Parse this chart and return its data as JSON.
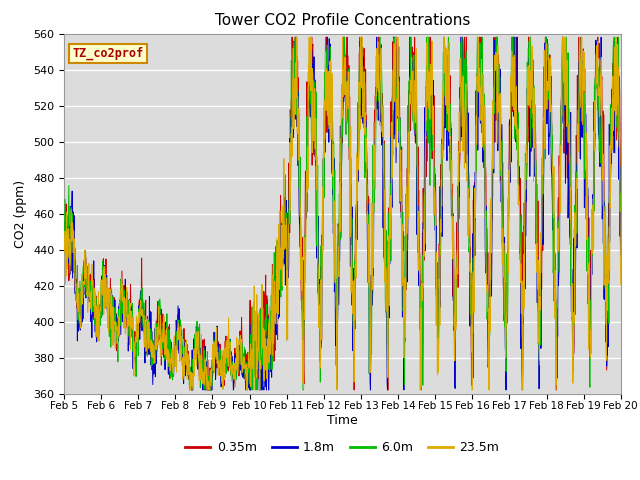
{
  "title": "Tower CO2 Profile Concentrations",
  "xlabel": "Time",
  "ylabel": "CO2 (ppm)",
  "ylim": [
    360,
    560
  ],
  "yticks": [
    360,
    380,
    400,
    420,
    440,
    460,
    480,
    500,
    520,
    540,
    560
  ],
  "series_labels": [
    "0.35m",
    "1.8m",
    "6.0m",
    "23.5m"
  ],
  "series_colors": [
    "#cc0000",
    "#0000cc",
    "#00bb00",
    "#ddaa00"
  ],
  "legend_label": "TZ_co2prof",
  "legend_text_color": "#aa0000",
  "legend_bg_color": "#ffffcc",
  "legend_border_color": "#cc8800",
  "plot_bg_color": "#dcdcdc",
  "fig_bg_color": "#ffffff",
  "n_points": 1500,
  "seed": 42,
  "xtick_labels": [
    "Feb 5",
    "Feb 6",
    "Feb 7",
    "Feb 8",
    "Feb 9",
    "Feb 10",
    "Feb 11",
    "Feb 12",
    "Feb 13",
    "Feb 14",
    "Feb 15",
    "Feb 16",
    "Feb 17",
    "Feb 18",
    "Feb 19",
    "Feb 20"
  ]
}
